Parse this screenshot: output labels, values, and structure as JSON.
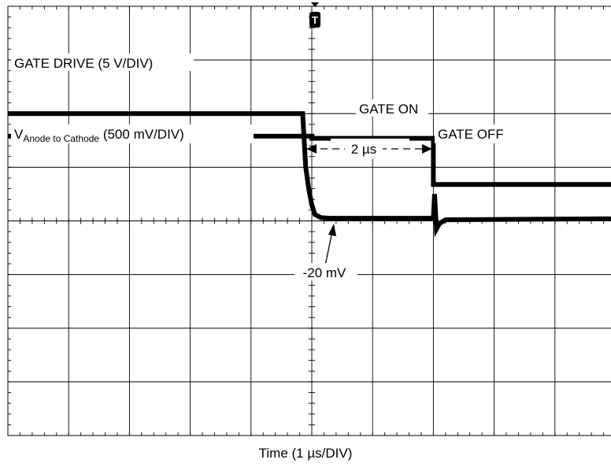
{
  "chart_data": {
    "type": "line",
    "xlabel": "Time (1 µs/DIV)",
    "x_divisions": 10,
    "y_divisions": 8,
    "grid": true,
    "trigger_marker": "T",
    "series": [
      {
        "name": "GATE DRIVE (5 V/DIV)",
        "x": [
          0,
          5,
          5,
          7,
          7,
          10
        ],
        "y": [
          1.58,
          1.58,
          1.54,
          1.54,
          0.68,
          0.68
        ]
      },
      {
        "name": "V_Anode to Cathode (500 mV/DIV)",
        "label_main": "V",
        "label_sub": "Anode to Cathode",
        "label_rest": " (500 mV/DIV)",
        "x": [
          0,
          4.85,
          4.9,
          4.95,
          5.0,
          5.05,
          5.15,
          5.3,
          7.0,
          7.02,
          7.05,
          7.1,
          7.2,
          10
        ],
        "y": [
          2.0,
          2.0,
          1.0,
          0.6,
          0.3,
          0.12,
          0.06,
          0.05,
          0.05,
          0.5,
          -0.15,
          -0.05,
          0.02,
          0.04
        ]
      }
    ],
    "annotations": {
      "gate_on": "GATE ON",
      "gate_off": "GATE OFF",
      "interval": "2 µs",
      "level": "-20 mV"
    }
  }
}
